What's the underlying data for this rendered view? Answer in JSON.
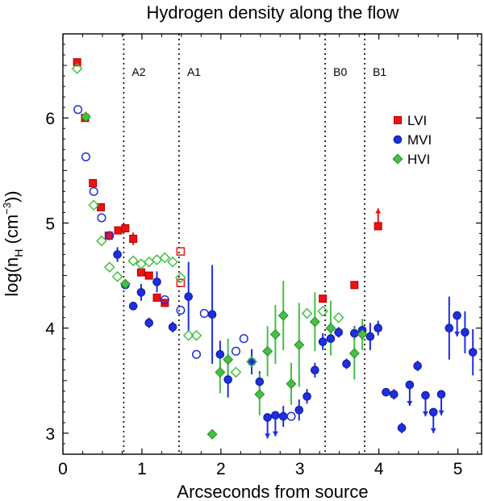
{
  "chart_data": {
    "type": "scatter",
    "title": "Hydrogen density along the flow",
    "xlabel": "Arcseconds from source",
    "ylabel_main": "log(n",
    "ylabel_sub": "H",
    "ylabel_unit": " (cm",
    "ylabel_sup": "−3",
    "ylabel_close": "))",
    "xlim": [
      0,
      5.3
    ],
    "ylim": [
      2.8,
      6.8
    ],
    "x_ticks": [
      0,
      1,
      2,
      3,
      4,
      5
    ],
    "y_ticks": [
      3,
      4,
      5,
      6
    ],
    "regions": [
      {
        "label": "A2",
        "x": 0.77
      },
      {
        "label": "A1",
        "x": 1.47
      },
      {
        "label": "B0",
        "x": 3.32
      },
      {
        "label": "B1",
        "x": 3.82
      }
    ],
    "legend": [
      {
        "name": "LVI",
        "marker": "square",
        "color": "#ee1111"
      },
      {
        "name": "MVI",
        "marker": "circle",
        "color": "#1f2ee0"
      },
      {
        "name": "HVI",
        "marker": "diamond",
        "color": "#44c044"
      }
    ],
    "series": [
      {
        "name": "LVI",
        "marker": "square",
        "color": "#ee1111",
        "points": [
          {
            "x": 0.18,
            "y": 6.53
          },
          {
            "x": 0.28,
            "y": 6.0
          },
          {
            "x": 0.38,
            "y": 5.38
          },
          {
            "x": 0.48,
            "y": 5.15
          },
          {
            "x": 0.58,
            "y": 4.88
          },
          {
            "x": 0.7,
            "y": 4.93
          },
          {
            "x": 0.79,
            "y": 4.95
          },
          {
            "x": 0.89,
            "y": 4.85,
            "err": 0.06
          },
          {
            "x": 0.99,
            "y": 4.53
          },
          {
            "x": 1.09,
            "y": 4.5
          },
          {
            "x": 1.19,
            "y": 4.29
          },
          {
            "x": 1.29,
            "y": 4.24
          },
          {
            "x": 1.49,
            "y": 4.73,
            "open": true
          },
          {
            "x": 1.49,
            "y": 4.43,
            "open": true
          },
          {
            "x": 3.29,
            "y": 4.28
          },
          {
            "x": 3.69,
            "y": 4.41
          },
          {
            "x": 3.99,
            "y": 4.97,
            "uparrow": true
          }
        ]
      },
      {
        "name": "MVI",
        "marker": "circle",
        "color": "#1f2ee0",
        "points": [
          {
            "x": 0.19,
            "y": 6.08,
            "open": true
          },
          {
            "x": 0.29,
            "y": 5.63,
            "open": true
          },
          {
            "x": 0.39,
            "y": 5.3,
            "open": true
          },
          {
            "x": 0.49,
            "y": 5.05,
            "open": true
          },
          {
            "x": 0.59,
            "y": 4.88,
            "open": true
          },
          {
            "x": 0.69,
            "y": 4.7,
            "err": 0.07
          },
          {
            "x": 0.79,
            "y": 4.41
          },
          {
            "x": 0.89,
            "y": 4.21
          },
          {
            "x": 0.99,
            "y": 4.34,
            "err": 0.08
          },
          {
            "x": 1.09,
            "y": 4.05,
            "err": 0.05
          },
          {
            "x": 1.19,
            "y": 4.44,
            "err": 0.1
          },
          {
            "x": 1.29,
            "y": 4.27,
            "open": true
          },
          {
            "x": 1.39,
            "y": 4.01,
            "err": 0.05
          },
          {
            "x": 1.49,
            "y": 4.17,
            "open": true
          },
          {
            "x": 1.59,
            "y": 4.3,
            "err": 0.33
          },
          {
            "x": 1.69,
            "y": 3.75,
            "open": true
          },
          {
            "x": 1.79,
            "y": 4.14,
            "open": true
          },
          {
            "x": 1.89,
            "y": 4.13,
            "err": 0.47
          },
          {
            "x": 1.99,
            "y": 3.75,
            "err": 0.13
          },
          {
            "x": 2.09,
            "y": 3.51,
            "err": 0.17
          },
          {
            "x": 2.19,
            "y": 3.78,
            "open": true
          },
          {
            "x": 2.29,
            "y": 3.9,
            "open": true
          },
          {
            "x": 2.39,
            "y": 3.68,
            "err": 0.12
          },
          {
            "x": 2.49,
            "y": 3.49,
            "err": 0.1
          },
          {
            "x": 2.59,
            "y": 3.15,
            "downarrow": true
          },
          {
            "x": 2.69,
            "y": 3.17,
            "downarrow": true
          },
          {
            "x": 2.79,
            "y": 3.16,
            "err": 0.1
          },
          {
            "x": 2.89,
            "y": 3.16,
            "open": true
          },
          {
            "x": 2.99,
            "y": 3.22,
            "err": 0.1
          },
          {
            "x": 3.09,
            "y": 3.35,
            "err": 0.07
          },
          {
            "x": 3.19,
            "y": 3.6,
            "err": 0.07
          },
          {
            "x": 3.29,
            "y": 3.87,
            "err": 0.08
          },
          {
            "x": 3.39,
            "y": 3.9,
            "err": 0.05
          },
          {
            "x": 3.49,
            "y": 3.96,
            "err": 0.05
          },
          {
            "x": 3.59,
            "y": 3.66,
            "err": 0.05
          },
          {
            "x": 3.69,
            "y": 3.95,
            "err": 0.07
          },
          {
            "x": 3.79,
            "y": 3.98,
            "err": 0.06
          },
          {
            "x": 3.89,
            "y": 3.92,
            "err": 0.13
          },
          {
            "x": 3.99,
            "y": 4.0,
            "err": 0.07
          },
          {
            "x": 4.09,
            "y": 3.39
          },
          {
            "x": 4.19,
            "y": 3.37,
            "err": 0.05
          },
          {
            "x": 4.29,
            "y": 3.05,
            "err": 0.05
          },
          {
            "x": 4.39,
            "y": 3.46,
            "downarrow": true
          },
          {
            "x": 4.49,
            "y": 3.64,
            "err": 0.05
          },
          {
            "x": 4.59,
            "y": 3.36,
            "downarrow": true
          },
          {
            "x": 4.69,
            "y": 3.2,
            "downarrow": true
          },
          {
            "x": 4.79,
            "y": 3.37,
            "downarrow": true
          },
          {
            "x": 4.89,
            "y": 4.0,
            "err": 0.3
          },
          {
            "x": 4.99,
            "y": 4.12,
            "downarrow": true
          },
          {
            "x": 5.09,
            "y": 3.96,
            "err": 0.2
          },
          {
            "x": 5.19,
            "y": 3.77,
            "err": 0.22
          }
        ]
      },
      {
        "name": "HVI",
        "marker": "diamond",
        "color": "#44c044",
        "points": [
          {
            "x": 0.18,
            "y": 6.47,
            "open": true
          },
          {
            "x": 0.29,
            "y": 6.01
          },
          {
            "x": 0.39,
            "y": 5.17,
            "open": true
          },
          {
            "x": 0.49,
            "y": 4.83,
            "open": true
          },
          {
            "x": 0.59,
            "y": 4.58,
            "open": true
          },
          {
            "x": 0.69,
            "y": 4.49,
            "open": true
          },
          {
            "x": 0.79,
            "y": 4.42
          },
          {
            "x": 0.89,
            "y": 4.64,
            "open": true
          },
          {
            "x": 0.99,
            "y": 4.61,
            "open": true
          },
          {
            "x": 1.09,
            "y": 4.63,
            "open": true
          },
          {
            "x": 1.19,
            "y": 4.65,
            "open": true
          },
          {
            "x": 1.29,
            "y": 4.67,
            "open": true
          },
          {
            "x": 1.39,
            "y": 4.63,
            "open": true
          },
          {
            "x": 1.49,
            "y": 4.48,
            "open": true
          },
          {
            "x": 1.59,
            "y": 3.93,
            "open": true
          },
          {
            "x": 1.69,
            "y": 3.93,
            "open": true
          },
          {
            "x": 1.89,
            "y": 2.99,
            "err": 0.04
          },
          {
            "x": 1.99,
            "y": 3.58,
            "err": 0.2
          },
          {
            "x": 2.09,
            "y": 3.7,
            "err": 0.2
          },
          {
            "x": 2.19,
            "y": 3.58,
            "open": true
          },
          {
            "x": 2.39,
            "y": 3.68,
            "open": true
          },
          {
            "x": 2.49,
            "y": 3.37,
            "err": 0.2
          },
          {
            "x": 2.59,
            "y": 3.78,
            "err": 0.24
          },
          {
            "x": 2.69,
            "y": 3.94,
            "err": 0.28
          },
          {
            "x": 2.79,
            "y": 4.12,
            "err": 0.33
          },
          {
            "x": 2.89,
            "y": 3.47,
            "err": 0.2
          },
          {
            "x": 2.99,
            "y": 3.84,
            "err": 0.4
          },
          {
            "x": 3.09,
            "y": 4.14,
            "open": true
          },
          {
            "x": 3.19,
            "y": 4.06,
            "err": 0.28
          },
          {
            "x": 3.29,
            "y": 4.16,
            "open": true
          },
          {
            "x": 3.39,
            "y": 4.0,
            "err": 0.26
          },
          {
            "x": 3.49,
            "y": 4.1,
            "open": true
          },
          {
            "x": 3.69,
            "y": 3.76,
            "err": 0.25
          },
          {
            "x": 3.79,
            "y": 3.94,
            "err": 0.15
          }
        ]
      }
    ]
  }
}
